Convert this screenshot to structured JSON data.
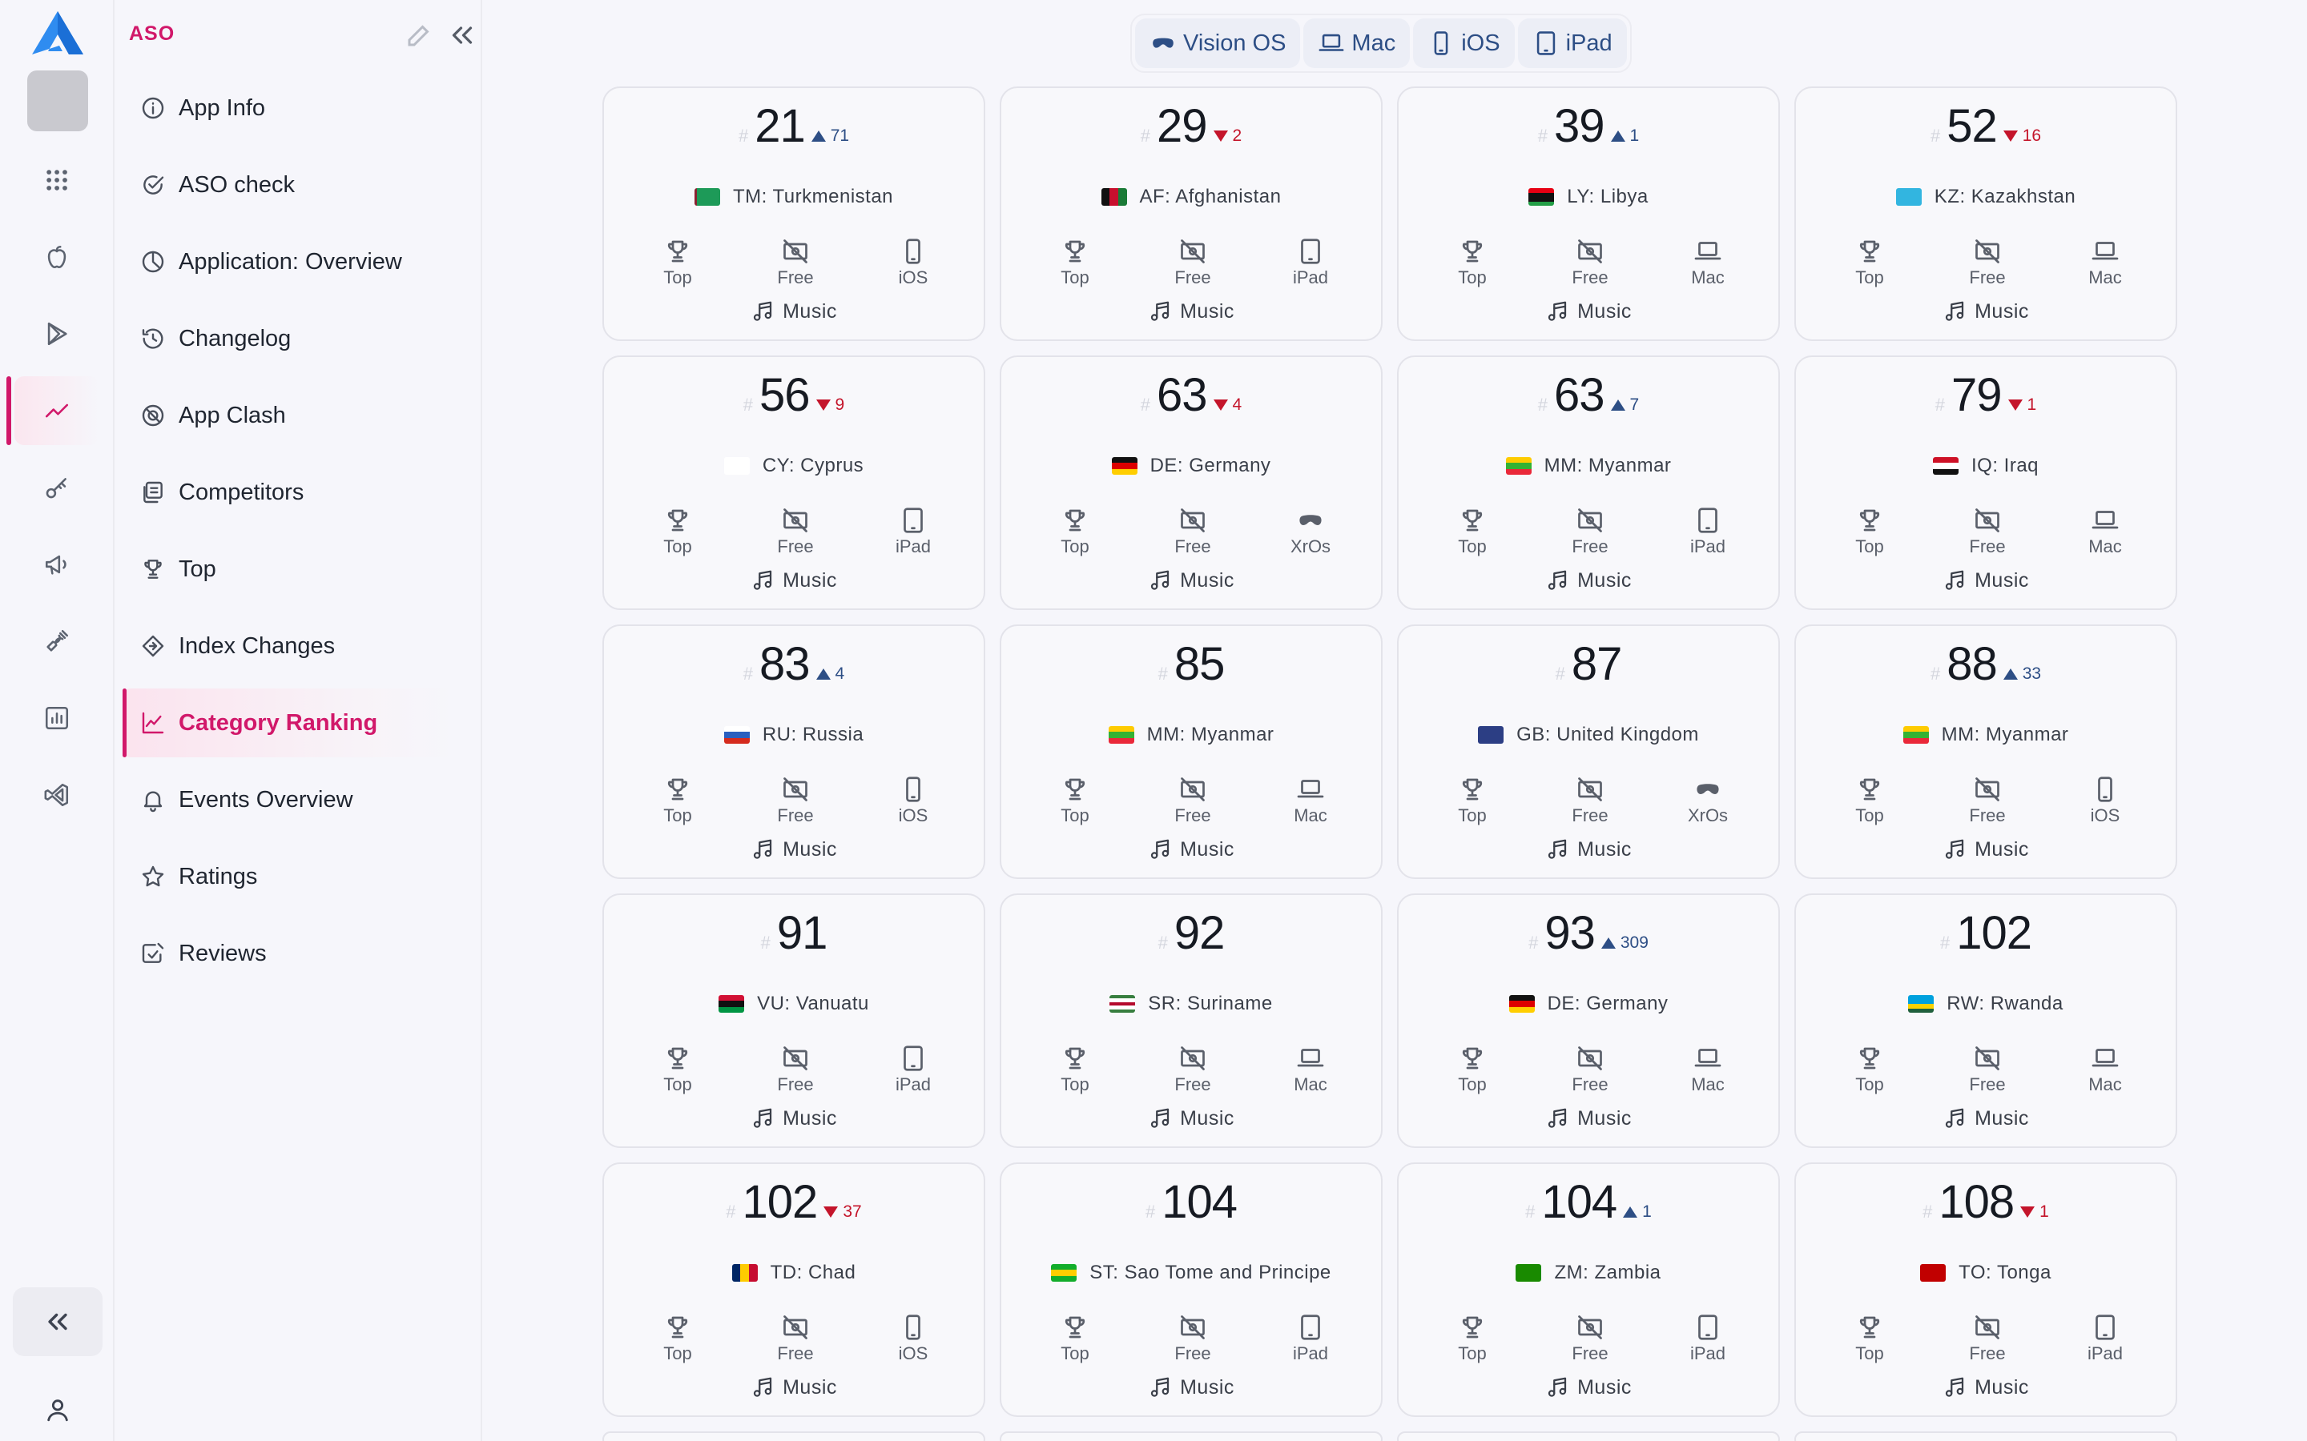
{
  "sidebar": {
    "brand": "ASO",
    "nav": [
      {
        "label": "App Info",
        "icon": "info-icon",
        "active": false
      },
      {
        "label": "ASO check",
        "icon": "check-circle-icon",
        "active": false
      },
      {
        "label": "Application: Overview",
        "icon": "pie-chart-icon",
        "active": false
      },
      {
        "label": "Changelog",
        "icon": "history-icon",
        "active": false
      },
      {
        "label": "App Clash",
        "icon": "clash-icon",
        "active": false
      },
      {
        "label": "Competitors",
        "icon": "competitors-icon",
        "active": false
      },
      {
        "label": "Top",
        "icon": "trophy-icon",
        "active": false
      },
      {
        "label": "Index Changes",
        "icon": "index-changes-icon",
        "active": false
      },
      {
        "label": "Category Ranking",
        "icon": "line-chart-icon",
        "active": true
      },
      {
        "label": "Events Overview",
        "icon": "bell-icon",
        "active": false
      },
      {
        "label": "Ratings",
        "icon": "star-icon",
        "active": false
      },
      {
        "label": "Reviews",
        "icon": "reviews-icon",
        "active": false
      }
    ]
  },
  "rail": {
    "items": [
      "apps-grid-icon",
      "apple-icon",
      "google-play-icon",
      "trending-icon",
      "key-icon",
      "megaphone-icon",
      "tools-icon",
      "report-icon",
      "vscode-icon"
    ],
    "active_index": 3
  },
  "platform_tabs": [
    {
      "label": "Vision OS",
      "icon": "vision-pro-icon"
    },
    {
      "label": "Mac",
      "icon": "laptop-icon"
    },
    {
      "label": "iOS",
      "icon": "phone-icon"
    },
    {
      "label": "iPad",
      "icon": "tablet-icon"
    }
  ],
  "labels": {
    "hash": "#",
    "top": "Top",
    "free": "Free",
    "genre": "Music"
  },
  "colors": {
    "accent": "#d1186a",
    "up": "#2d4e85",
    "down": "#c4152b"
  },
  "cards": [
    {
      "rank": "21",
      "delta": "71",
      "dir": "up",
      "code": "TM",
      "country": "TM: Turkmenistan",
      "device": "iOS"
    },
    {
      "rank": "29",
      "delta": "2",
      "dir": "down",
      "code": "AF",
      "country": "AF: Afghanistan",
      "device": "iPad"
    },
    {
      "rank": "39",
      "delta": "1",
      "dir": "up",
      "code": "LY",
      "country": "LY: Libya",
      "device": "Mac"
    },
    {
      "rank": "52",
      "delta": "16",
      "dir": "down",
      "code": "KZ",
      "country": "KZ: Kazakhstan",
      "device": "Mac"
    },
    {
      "rank": "56",
      "delta": "9",
      "dir": "down",
      "code": "CY",
      "country": "CY: Cyprus",
      "device": "iPad"
    },
    {
      "rank": "63",
      "delta": "4",
      "dir": "down",
      "code": "DE",
      "country": "DE: Germany",
      "device": "XrOs"
    },
    {
      "rank": "63",
      "delta": "7",
      "dir": "up",
      "code": "MM",
      "country": "MM: Myanmar",
      "device": "iPad"
    },
    {
      "rank": "79",
      "delta": "1",
      "dir": "down",
      "code": "IQ",
      "country": "IQ: Iraq",
      "device": "Mac"
    },
    {
      "rank": "83",
      "delta": "4",
      "dir": "up",
      "code": "RU",
      "country": "RU: Russia",
      "device": "iOS"
    },
    {
      "rank": "85",
      "delta": "",
      "dir": "",
      "code": "MM",
      "country": "MM: Myanmar",
      "device": "Mac"
    },
    {
      "rank": "87",
      "delta": "",
      "dir": "",
      "code": "GB",
      "country": "GB: United Kingdom",
      "device": "XrOs"
    },
    {
      "rank": "88",
      "delta": "33",
      "dir": "up",
      "code": "MM",
      "country": "MM: Myanmar",
      "device": "iOS"
    },
    {
      "rank": "91",
      "delta": "",
      "dir": "",
      "code": "VU",
      "country": "VU: Vanuatu",
      "device": "iPad"
    },
    {
      "rank": "92",
      "delta": "",
      "dir": "",
      "code": "SR",
      "country": "SR: Suriname",
      "device": "Mac"
    },
    {
      "rank": "93",
      "delta": "309",
      "dir": "up",
      "code": "DE",
      "country": "DE: Germany",
      "device": "Mac"
    },
    {
      "rank": "102",
      "delta": "",
      "dir": "",
      "code": "RW",
      "country": "RW: Rwanda",
      "device": "Mac"
    },
    {
      "rank": "102",
      "delta": "37",
      "dir": "down",
      "code": "TD",
      "country": "TD: Chad",
      "device": "iOS"
    },
    {
      "rank": "104",
      "delta": "",
      "dir": "",
      "code": "ST",
      "country": "ST: Sao Tome and Principe",
      "device": "iPad"
    },
    {
      "rank": "104",
      "delta": "1",
      "dir": "up",
      "code": "ZM",
      "country": "ZM: Zambia",
      "device": "iPad"
    },
    {
      "rank": "108",
      "delta": "1",
      "dir": "down",
      "code": "TO",
      "country": "TO: Tonga",
      "device": "iPad"
    }
  ]
}
